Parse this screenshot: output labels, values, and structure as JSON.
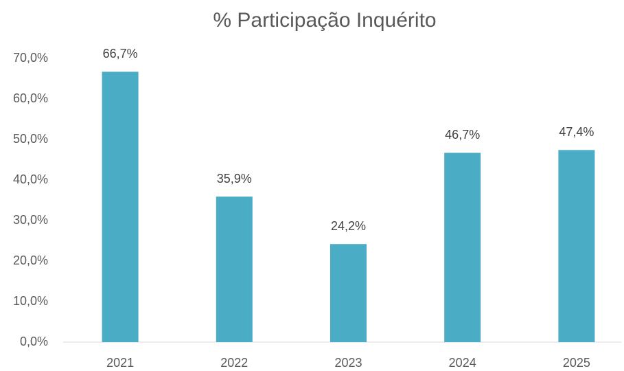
{
  "chart_data": {
    "type": "bar",
    "title": "% Participação Inquérito",
    "categories": [
      "2021",
      "2022",
      "2023",
      "2024",
      "2025"
    ],
    "values": [
      66.7,
      35.9,
      24.2,
      46.7,
      47.4
    ],
    "value_labels": [
      "66,7%",
      "35,9%",
      "24,2%",
      "46,7%",
      "47,4%"
    ],
    "color": "#4bacc6",
    "ylim": [
      0,
      70
    ],
    "yticks": [
      {
        "value": 0,
        "label": "0,0%"
      },
      {
        "value": 10,
        "label": "10,0%"
      },
      {
        "value": 20,
        "label": "20,0%"
      },
      {
        "value": 30,
        "label": "30,0%"
      },
      {
        "value": 40,
        "label": "40,0%"
      },
      {
        "value": 50,
        "label": "50,0%"
      },
      {
        "value": 60,
        "label": "60,0%"
      },
      {
        "value": 70,
        "label": "70,0%"
      }
    ],
    "grid": false
  }
}
